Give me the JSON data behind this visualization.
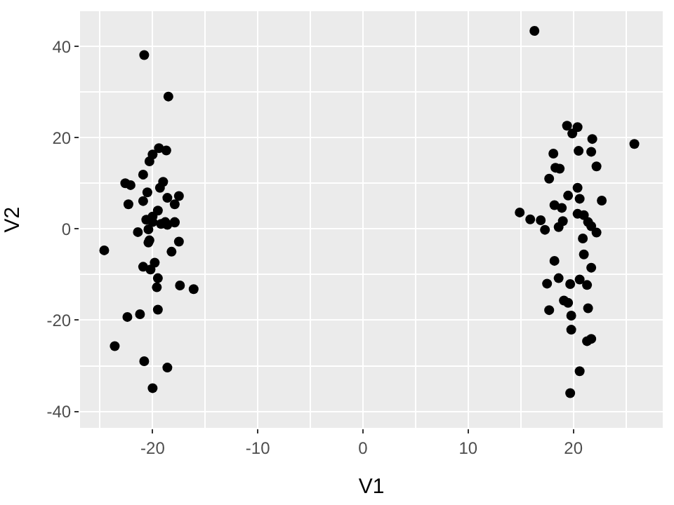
{
  "chart_data": {
    "type": "scatter",
    "xlabel": "V1",
    "ylabel": "V2",
    "xlim": [
      -26.9,
      28.5
    ],
    "ylim": [
      -43.6,
      47.7
    ],
    "xticks": [
      -20,
      -10,
      0,
      10,
      20
    ],
    "yticks": [
      -40,
      -20,
      0,
      20,
      40
    ],
    "grid": true,
    "marker": "circle",
    "series": [
      {
        "color": "#000000",
        "x": [
          -20.8,
          -18.5,
          -19.4,
          -18.7,
          -20.0,
          -20.3,
          -20.9,
          -22.6,
          -22.1,
          -19.0,
          -19.3,
          -20.5,
          -17.5,
          -18.6,
          -20.9,
          -22.3,
          -17.9,
          -19.5,
          -20.6,
          -20.0,
          -18.8,
          -17.9,
          -20.0,
          -19.2,
          -18.6,
          -17.9,
          -21.4,
          -20.4,
          -20.4,
          -20.3,
          -17.5,
          -24.6,
          -18.2,
          -19.8,
          -20.9,
          -20.2,
          -19.5,
          -19.6,
          -17.4,
          -16.1,
          -19.5,
          -21.2,
          -22.4,
          -23.6,
          -20.8,
          -18.6,
          -20.0,
          16.3,
          19.4,
          20.4,
          19.9,
          21.8,
          25.8,
          18.1,
          20.5,
          21.7,
          18.3,
          18.7,
          22.2,
          17.7,
          20.4,
          19.5,
          20.6,
          22.7,
          18.2,
          18.9,
          14.9,
          15.9,
          16.9,
          20.4,
          21.0,
          19.0,
          21.4,
          18.6,
          17.3,
          22.2,
          21.7,
          20.9,
          21.0,
          18.2,
          21.7,
          18.6,
          17.5,
          19.7,
          20.6,
          21.3,
          19.1,
          19.5,
          17.7,
          21.4,
          19.8,
          19.8,
          21.3,
          21.7,
          20.6,
          19.7
        ],
        "values": [
          38.1,
          29.0,
          17.7,
          17.2,
          16.3,
          14.8,
          11.9,
          10.0,
          9.6,
          10.3,
          9.0,
          8.0,
          7.2,
          6.8,
          6.1,
          5.4,
          5.4,
          4.0,
          2.0,
          1.5,
          1.5,
          1.5,
          2.7,
          1.1,
          0.9,
          1.4,
          -0.7,
          -0.1,
          -3.0,
          -2.5,
          -2.8,
          -4.7,
          -5.0,
          -7.4,
          -8.3,
          -8.9,
          -10.8,
          -12.8,
          -12.4,
          -13.2,
          -17.7,
          -18.7,
          -19.3,
          -25.7,
          -29.0,
          -30.4,
          -34.9,
          43.4,
          22.6,
          22.3,
          20.9,
          19.7,
          18.6,
          16.5,
          17.1,
          16.9,
          13.4,
          13.2,
          13.7,
          11.0,
          9.0,
          7.3,
          6.6,
          6.2,
          5.2,
          4.6,
          3.6,
          2.1,
          1.9,
          3.3,
          3.0,
          1.7,
          1.5,
          0.4,
          -0.2,
          -0.8,
          0.6,
          -2.1,
          -5.6,
          -7.0,
          -8.5,
          -10.8,
          -12.0,
          -12.1,
          -11.1,
          -12.3,
          -15.7,
          -16.2,
          -17.8,
          -17.4,
          -19.0,
          -22.1,
          -24.6,
          -24.1,
          -31.2,
          -36.0
        ]
      }
    ]
  }
}
